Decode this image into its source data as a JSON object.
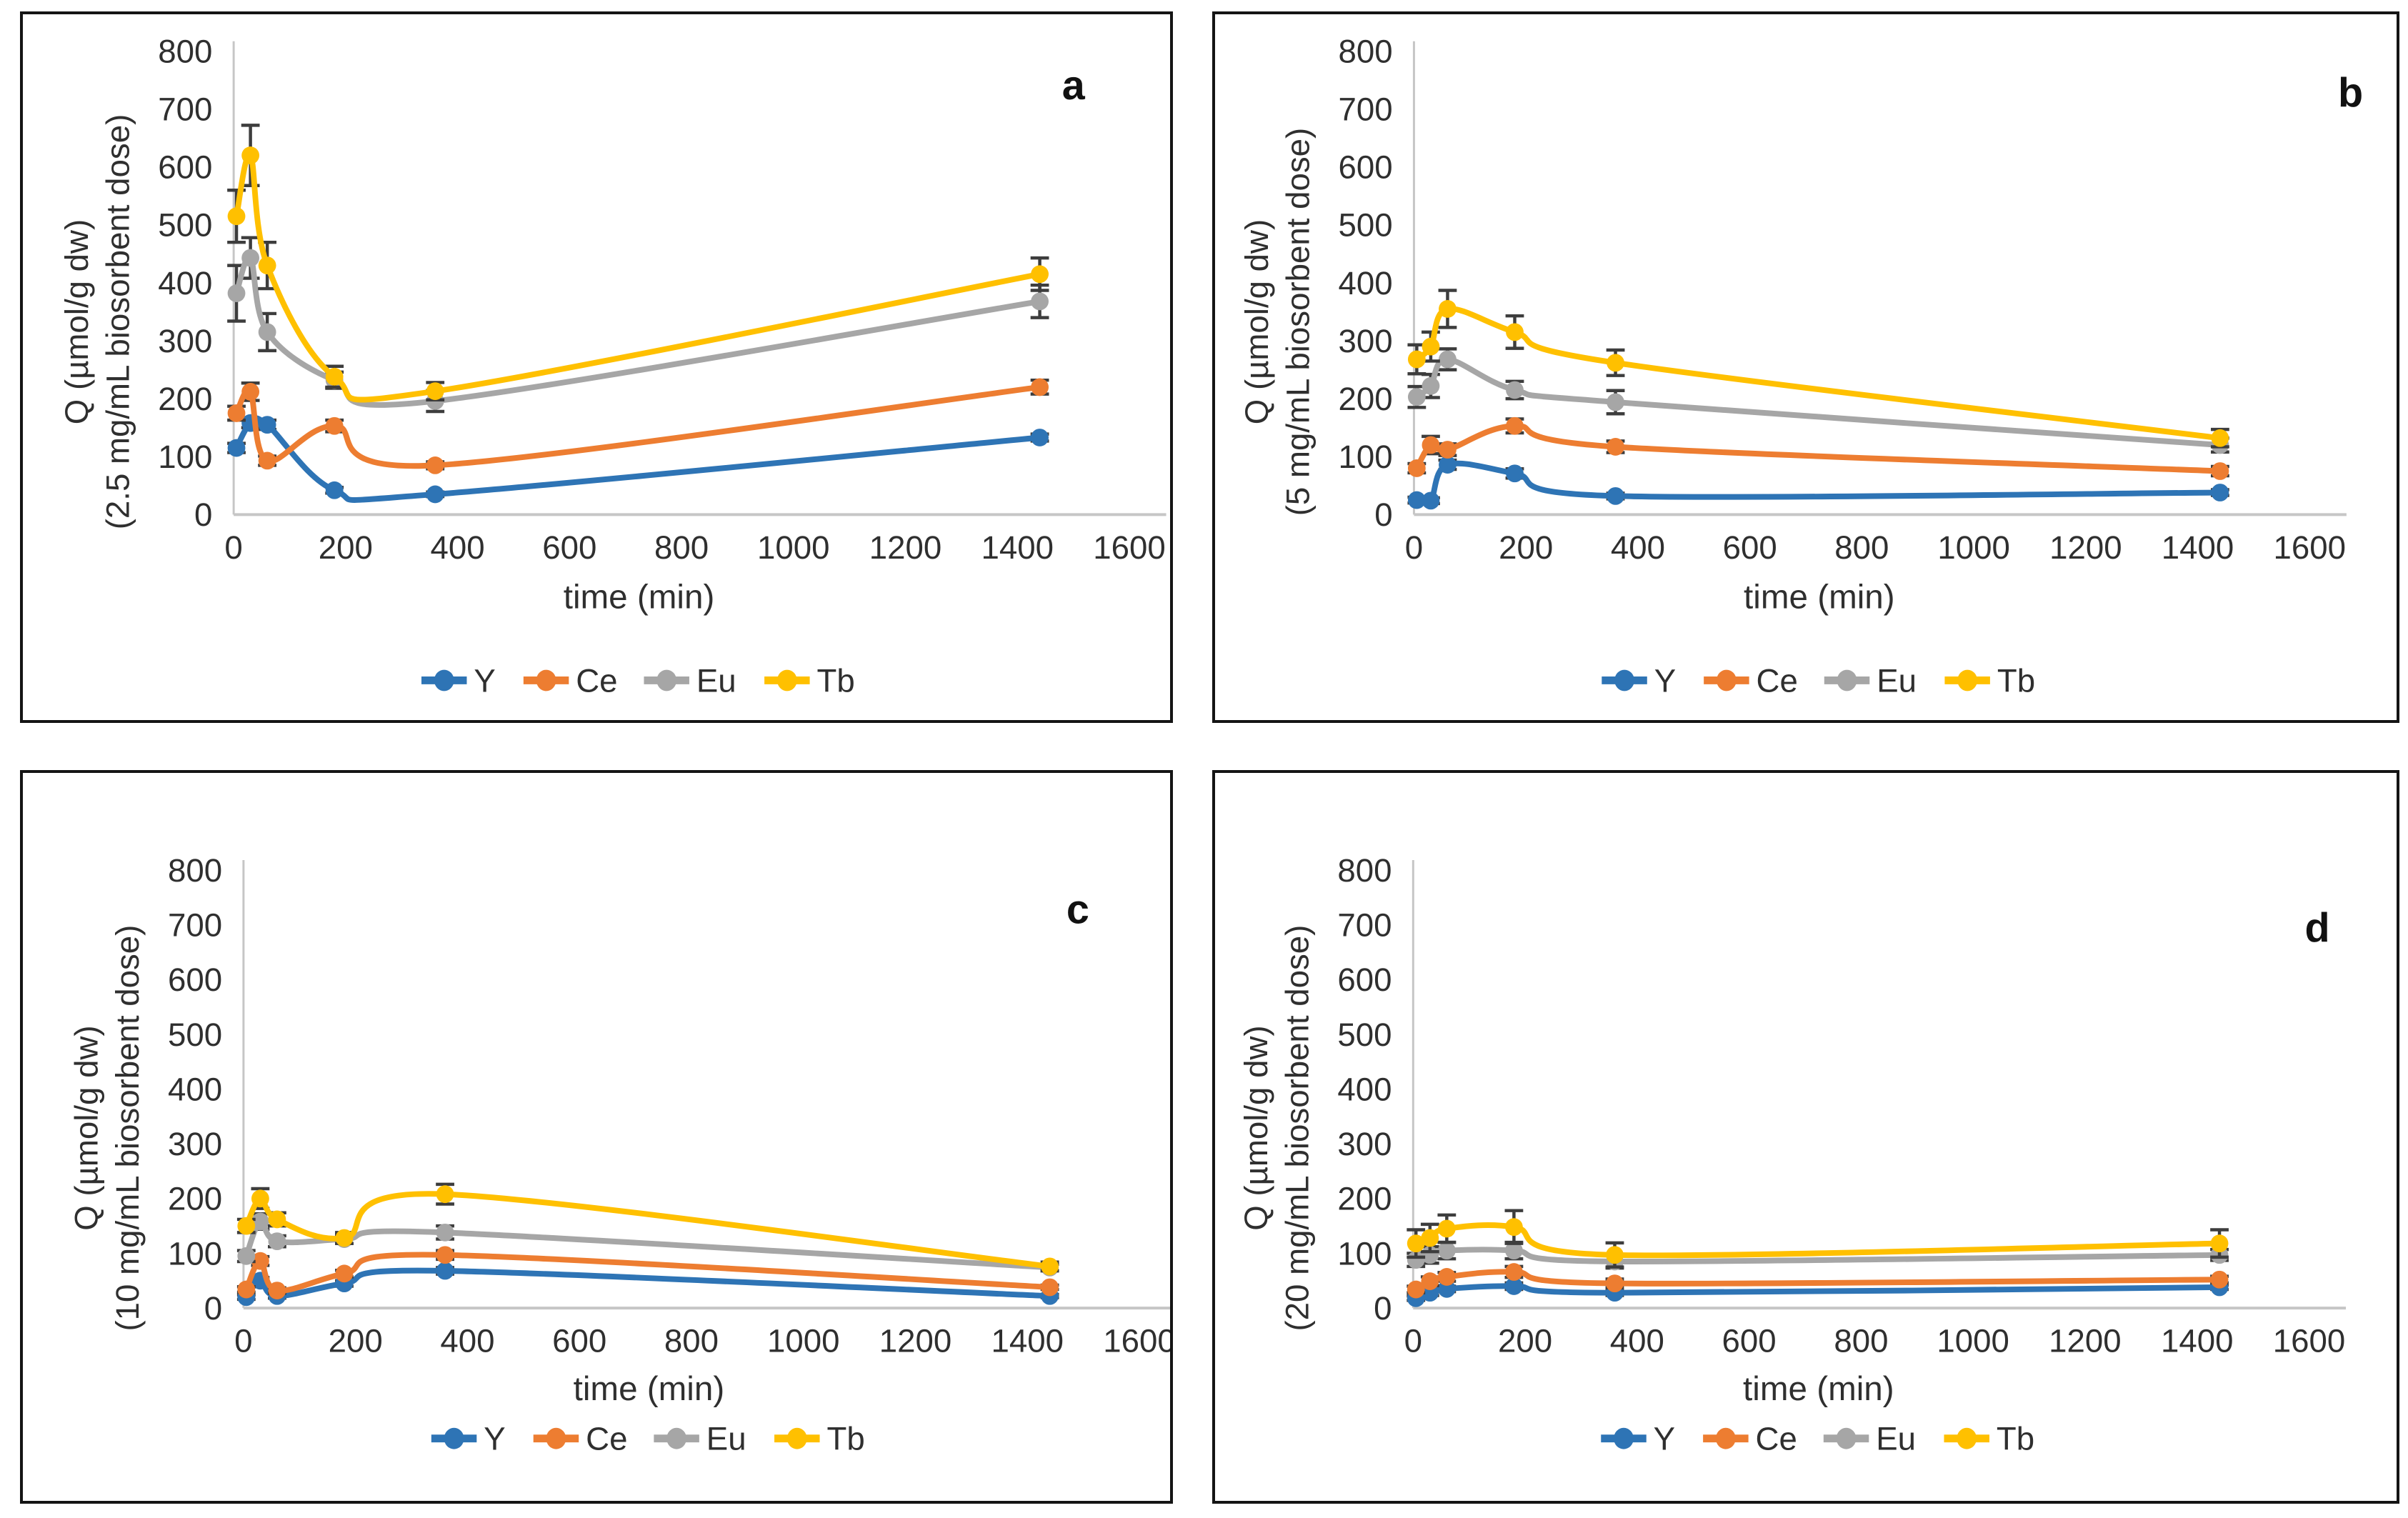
{
  "figure": {
    "background": "#ffffff",
    "axis_color": "#c6c6c6",
    "text_color": "#2f2f2f",
    "error_bar_color": "#3d3d3d",
    "series_colors": {
      "Y": "#2E74B5",
      "Ce": "#ED7D31",
      "Eu": "#A6A6A6",
      "Tb": "#FFC000"
    }
  },
  "chart_data": [
    {
      "panel_label": "a",
      "type": "line",
      "xlabel": "time (min)",
      "ylabel_line1": "Q (µmol/g dw)",
      "ylabel_line2": "(2.5 mg/mL biosorbent dose)",
      "x": [
        5,
        30,
        60,
        180,
        360,
        1440
      ],
      "xlim": [
        0,
        1600
      ],
      "xticks": [
        0,
        200,
        400,
        600,
        800,
        1000,
        1200,
        1400,
        1600
      ],
      "ylim": [
        0,
        800
      ],
      "yticks": [
        0,
        100,
        200,
        300,
        400,
        500,
        600,
        700,
        800
      ],
      "grid": false,
      "legend_position": "bottom",
      "series": [
        {
          "name": "Y",
          "color": "#2E74B5",
          "values": [
            115,
            158,
            155,
            42,
            35,
            133
          ],
          "errors": [
            8,
            8,
            8,
            5,
            4,
            6
          ]
        },
        {
          "name": "Ce",
          "color": "#ED7D31",
          "values": [
            175,
            212,
            93,
            153,
            85,
            220
          ],
          "errors": [
            12,
            15,
            8,
            10,
            6,
            12
          ]
        },
        {
          "name": "Eu",
          "color": "#A6A6A6",
          "values": [
            382,
            443,
            315,
            232,
            196,
            368
          ],
          "errors": [
            48,
            35,
            32,
            14,
            18,
            28
          ]
        },
        {
          "name": "Tb",
          "color": "#FFC000",
          "values": [
            515,
            620,
            430,
            238,
            213,
            415
          ],
          "errors": [
            45,
            52,
            40,
            18,
            15,
            28
          ]
        }
      ]
    },
    {
      "panel_label": "b",
      "type": "line",
      "xlabel": "time (min)",
      "ylabel_line1": "Q (µmol/g dw)",
      "ylabel_line2": "(5 mg/mL biosorbent dose)",
      "x": [
        5,
        30,
        60,
        180,
        360,
        1440
      ],
      "xlim": [
        0,
        1600
      ],
      "xticks": [
        0,
        200,
        400,
        600,
        800,
        1000,
        1200,
        1400,
        1600
      ],
      "ylim": [
        0,
        800
      ],
      "yticks": [
        0,
        100,
        200,
        300,
        400,
        500,
        600,
        700,
        800
      ],
      "grid": false,
      "legend_position": "bottom",
      "series": [
        {
          "name": "Y",
          "color": "#2E74B5",
          "values": [
            25,
            24,
            86,
            71,
            32,
            38
          ],
          "errors": [
            5,
            5,
            8,
            8,
            5,
            5
          ]
        },
        {
          "name": "Ce",
          "color": "#ED7D31",
          "values": [
            80,
            120,
            112,
            153,
            117,
            75
          ],
          "errors": [
            8,
            15,
            10,
            12,
            10,
            8
          ]
        },
        {
          "name": "Eu",
          "color": "#A6A6A6",
          "values": [
            203,
            222,
            268,
            215,
            194,
            120
          ],
          "errors": [
            18,
            20,
            18,
            15,
            20,
            12
          ]
        },
        {
          "name": "Tb",
          "color": "#FFC000",
          "values": [
            268,
            290,
            355,
            315,
            262,
            132
          ],
          "errors": [
            25,
            25,
            32,
            28,
            22,
            15
          ]
        }
      ]
    },
    {
      "panel_label": "c",
      "type": "line",
      "xlabel": "time (min)",
      "ylabel_line1": "Q (µmol/g dw)",
      "ylabel_line2": "(10 mg/mL biosorbent dose)",
      "x": [
        5,
        30,
        60,
        180,
        360,
        1440
      ],
      "xlim": [
        0,
        1600
      ],
      "xticks": [
        0,
        200,
        400,
        600,
        800,
        1000,
        1200,
        1400,
        1600
      ],
      "ylim": [
        0,
        800
      ],
      "yticks": [
        0,
        100,
        200,
        300,
        400,
        500,
        600,
        700,
        800
      ],
      "grid": false,
      "legend_position": "bottom",
      "series": [
        {
          "name": "Y",
          "color": "#2E74B5",
          "values": [
            20,
            50,
            22,
            45,
            68,
            22
          ],
          "errors": [
            4,
            6,
            4,
            5,
            6,
            3
          ]
        },
        {
          "name": "Ce",
          "color": "#ED7D31",
          "values": [
            34,
            86,
            32,
            63,
            97,
            38
          ],
          "errors": [
            5,
            8,
            5,
            6,
            8,
            4
          ]
        },
        {
          "name": "Eu",
          "color": "#A6A6A6",
          "values": [
            95,
            158,
            122,
            126,
            138,
            74
          ],
          "errors": [
            10,
            14,
            10,
            8,
            12,
            6
          ]
        },
        {
          "name": "Tb",
          "color": "#FFC000",
          "values": [
            150,
            200,
            162,
            128,
            208,
            76
          ],
          "errors": [
            12,
            18,
            12,
            10,
            18,
            8
          ]
        }
      ]
    },
    {
      "panel_label": "d",
      "type": "line",
      "xlabel": "time (min)",
      "ylabel_line1": "Q (µmol/g dw)",
      "ylabel_line2": "(20 mg/mL biosorbent dose)",
      "x": [
        5,
        30,
        60,
        180,
        360,
        1440
      ],
      "xlim": [
        0,
        1600
      ],
      "xticks": [
        0,
        200,
        400,
        600,
        800,
        1000,
        1200,
        1400,
        1600
      ],
      "ylim": [
        0,
        800
      ],
      "yticks": [
        0,
        100,
        200,
        300,
        400,
        500,
        600,
        700,
        800
      ],
      "grid": false,
      "legend_position": "bottom",
      "series": [
        {
          "name": "Y",
          "color": "#2E74B5",
          "values": [
            18,
            28,
            35,
            40,
            28,
            38
          ],
          "errors": [
            4,
            5,
            5,
            6,
            5,
            4
          ]
        },
        {
          "name": "Ce",
          "color": "#ED7D31",
          "values": [
            34,
            49,
            57,
            66,
            45,
            52
          ],
          "errors": [
            6,
            8,
            8,
            10,
            8,
            6
          ]
        },
        {
          "name": "Eu",
          "color": "#A6A6A6",
          "values": [
            88,
            97,
            105,
            105,
            85,
            97
          ],
          "errors": [
            12,
            15,
            15,
            15,
            12,
            10
          ]
        },
        {
          "name": "Tb",
          "color": "#FFC000",
          "values": [
            118,
            128,
            145,
            148,
            97,
            118
          ],
          "errors": [
            25,
            25,
            25,
            30,
            22,
            25
          ]
        }
      ]
    }
  ]
}
